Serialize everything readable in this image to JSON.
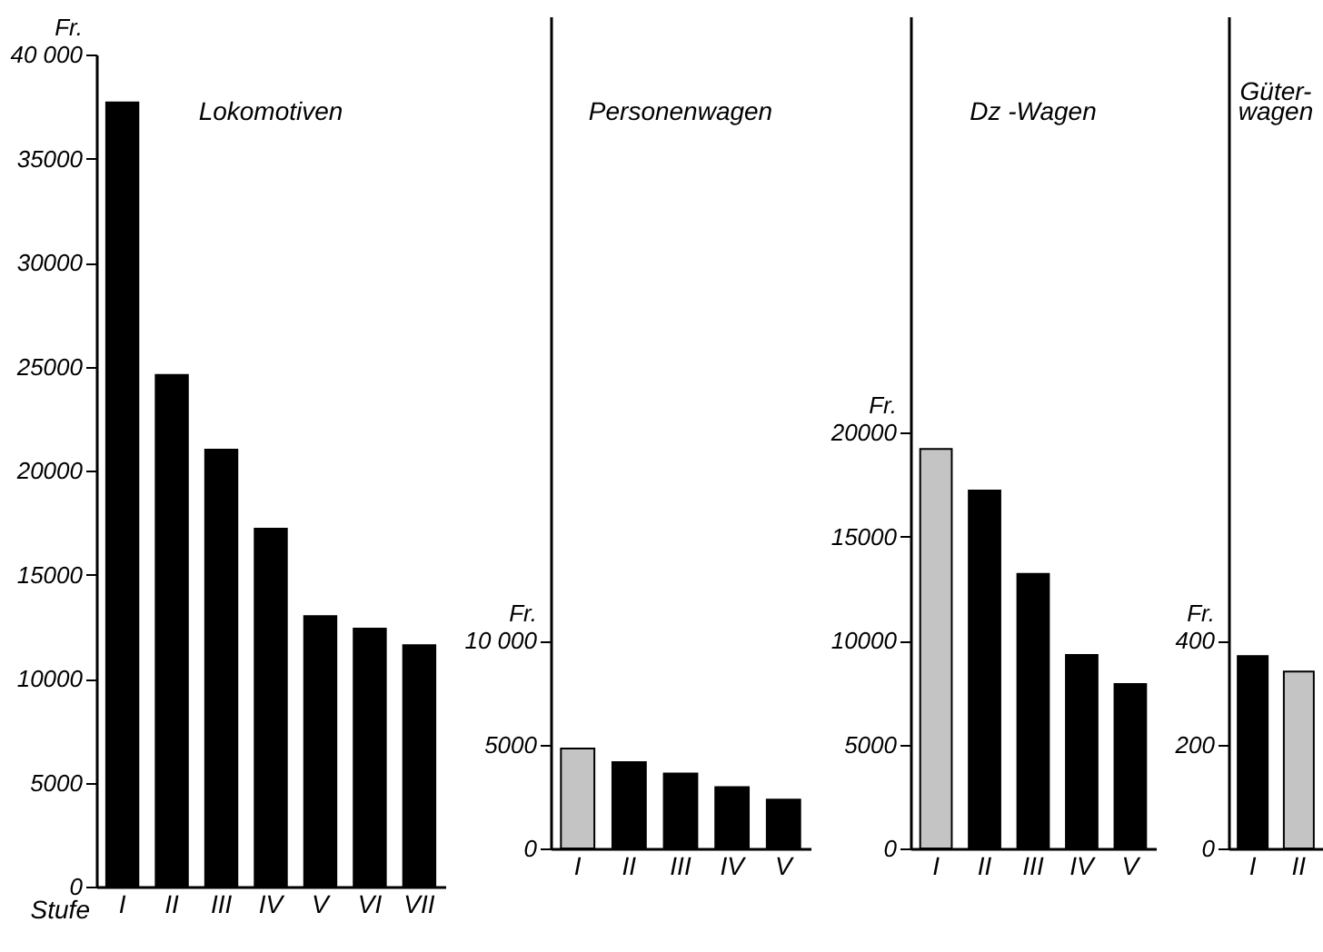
{
  "chart_data": [
    {
      "type": "bar",
      "title": "Lokomotiven",
      "ylabel": "Fr.",
      "xlabel": "Stufe",
      "categories": [
        "I",
        "II",
        "III",
        "IV",
        "V",
        "VI",
        "VII"
      ],
      "values": [
        37700,
        24600,
        21000,
        17200,
        13000,
        12400,
        11600
      ],
      "colors": [
        "#000000",
        "#000000",
        "#000000",
        "#000000",
        "#000000",
        "#000000",
        "#000000"
      ],
      "ylim": [
        0,
        40000
      ],
      "yticks": [
        0,
        5000,
        10000,
        15000,
        20000,
        25000,
        30000,
        35000,
        {
          "value": 40000,
          "label": "40 000"
        }
      ]
    },
    {
      "type": "bar",
      "title": "Personenwagen",
      "ylabel": "Fr.",
      "categories": [
        "I",
        "II",
        "III",
        "IV",
        "V"
      ],
      "values": [
        4800,
        4150,
        3600,
        2950,
        2350
      ],
      "colors": [
        "#c4c4c4",
        "#000000",
        "#000000",
        "#000000",
        "#000000"
      ],
      "ylim": [
        0,
        40000
      ],
      "yticks": [
        0,
        5000,
        {
          "value": 10000,
          "label": "10 000"
        }
      ]
    },
    {
      "type": "bar",
      "title": "Dz -Wagen",
      "ylabel": "Fr.",
      "categories": [
        "I",
        "II",
        "III",
        "IV",
        "V"
      ],
      "values": [
        19200,
        17200,
        13200,
        9300,
        7900
      ],
      "colors": [
        "#c4c4c4",
        "#000000",
        "#000000",
        "#000000",
        "#000000"
      ],
      "ylim": [
        0,
        40000
      ],
      "yticks": [
        0,
        5000,
        10000,
        15000,
        20000
      ]
    },
    {
      "type": "bar",
      "title": "Güter-\nwagen",
      "ylabel": "Fr.",
      "categories": [
        "I",
        "II"
      ],
      "values": [
        370,
        340
      ],
      "colors": [
        "#000000",
        "#c4c4c4"
      ],
      "ylim": [
        0,
        1600
      ],
      "yticks": [
        0,
        200,
        400
      ]
    }
  ]
}
